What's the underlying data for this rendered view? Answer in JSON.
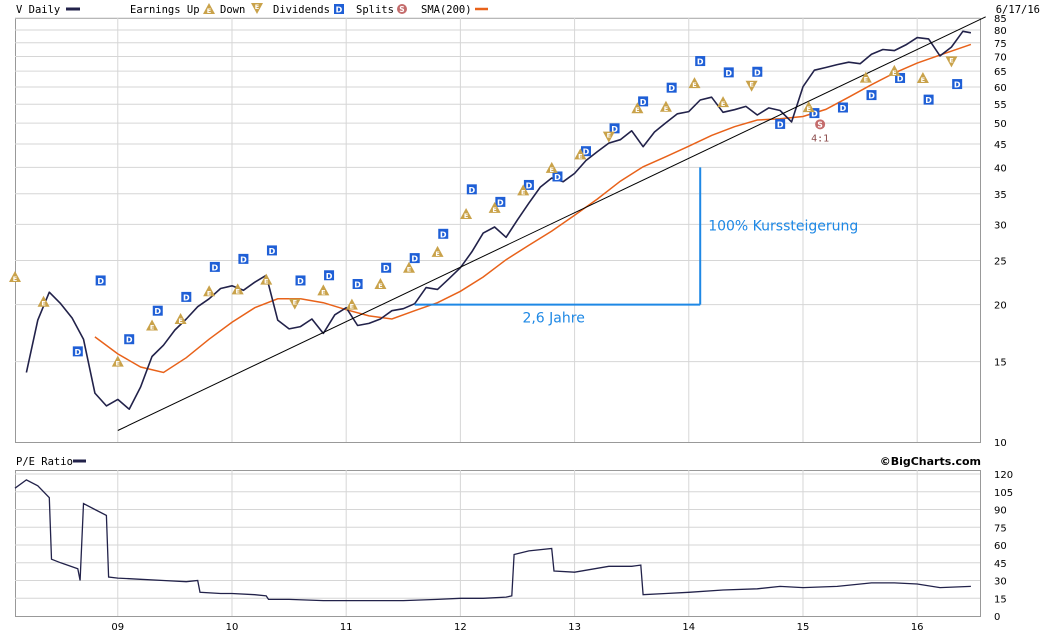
{
  "legend": {
    "symbol": "V Daily",
    "earnings": "Earnings Up",
    "down": "Down",
    "dividends": "Dividends",
    "splits": "Splits",
    "sma": "SMA(200)",
    "date": "6/17/16"
  },
  "pe_panel": {
    "label": "P/E Ratio",
    "credit": "©BigCharts.com"
  },
  "annotations": {
    "years_text": "2,6 Jahre",
    "gain_text": "100% Kurssteigerung",
    "split_text": "4:1"
  },
  "marker_glyphs": {
    "dividend": "D",
    "earnings": "E",
    "split": "S"
  },
  "colors": {
    "price": "#22224a",
    "sma": "#e8621a",
    "annotation": "#1e88e5",
    "dividend_box": "#1f5fd6",
    "earnings_up": "#c9a24a",
    "split": "#c46c6c",
    "grid": "#d6d6d6"
  },
  "chart_data": [
    {
      "type": "line",
      "title": "V Daily",
      "y_scale": "log",
      "ylim": [
        10,
        85
      ],
      "y_ticks": [
        85,
        80,
        75,
        70,
        65,
        60,
        55,
        50,
        45,
        40,
        35,
        30,
        25,
        20,
        15,
        10
      ],
      "x_ticks": [
        "09",
        "10",
        "11",
        "12",
        "13",
        "14",
        "15",
        "16"
      ],
      "grid": true,
      "series": [
        {
          "name": "V Daily",
          "x": [
            2008.2,
            2008.3,
            2008.4,
            2008.5,
            2008.6,
            2008.7,
            2008.8,
            2008.9,
            2009.0,
            2009.1,
            2009.2,
            2009.3,
            2009.4,
            2009.5,
            2009.6,
            2009.7,
            2009.8,
            2009.9,
            2010.0,
            2010.1,
            2010.2,
            2010.3,
            2010.4,
            2010.5,
            2010.6,
            2010.7,
            2010.8,
            2010.9,
            2011.0,
            2011.1,
            2011.2,
            2011.3,
            2011.4,
            2011.5,
            2011.6,
            2011.7,
            2011.8,
            2011.9,
            2012.0,
            2012.1,
            2012.2,
            2012.3,
            2012.4,
            2012.5,
            2012.6,
            2012.7,
            2012.8,
            2012.9,
            2013.0,
            2013.1,
            2013.2,
            2013.3,
            2013.4,
            2013.5,
            2013.6,
            2013.7,
            2013.8,
            2013.9,
            2014.0,
            2014.1,
            2014.2,
            2014.3,
            2014.4,
            2014.5,
            2014.6,
            2014.7,
            2014.8,
            2014.9,
            2015.0,
            2015.1,
            2015.2,
            2015.3,
            2015.4,
            2015.5,
            2015.6,
            2015.7,
            2015.8,
            2015.9,
            2016.0,
            2016.1,
            2016.2,
            2016.3,
            2016.4,
            2016.47
          ],
          "values": [
            14.2,
            18.5,
            21.3,
            20.1,
            18.7,
            16.8,
            12.8,
            12.0,
            12.4,
            11.8,
            13.2,
            15.4,
            16.3,
            17.6,
            18.6,
            19.8,
            20.6,
            21.7,
            22.0,
            21.5,
            22.4,
            23.2,
            18.5,
            17.7,
            17.9,
            18.6,
            17.3,
            19.0,
            19.7,
            18.0,
            18.2,
            18.6,
            19.4,
            19.6,
            20.1,
            21.8,
            21.6,
            22.8,
            24.1,
            26.1,
            28.7,
            29.6,
            28.1,
            30.7,
            33.4,
            36.2,
            37.9,
            37.2,
            38.8,
            41.4,
            43.3,
            45.2,
            46.0,
            48.1,
            44.4,
            47.8,
            50.1,
            52.4,
            53.0,
            56.2,
            57.0,
            52.8,
            53.5,
            54.4,
            52.1,
            54.0,
            53.3,
            50.3,
            60.1,
            65.3,
            66.2,
            67.2,
            68.0,
            67.5,
            70.8,
            72.5,
            72.1,
            74.2,
            77.0,
            76.5,
            70.2,
            73.4,
            79.5,
            78.9
          ]
        },
        {
          "name": "SMA(200)",
          "x": [
            2008.8,
            2009.0,
            2009.2,
            2009.4,
            2009.6,
            2009.8,
            2010.0,
            2010.2,
            2010.4,
            2010.6,
            2010.8,
            2011.0,
            2011.2,
            2011.4,
            2011.6,
            2011.8,
            2012.0,
            2012.2,
            2012.4,
            2012.6,
            2012.8,
            2013.0,
            2013.2,
            2013.4,
            2013.6,
            2013.8,
            2014.0,
            2014.2,
            2014.4,
            2014.6,
            2014.8,
            2015.0,
            2015.2,
            2015.4,
            2015.6,
            2015.8,
            2016.0,
            2016.2,
            2016.47
          ],
          "values": [
            17.0,
            15.6,
            14.6,
            14.2,
            15.3,
            16.8,
            18.3,
            19.7,
            20.6,
            20.6,
            20.2,
            19.5,
            18.9,
            18.6,
            19.4,
            20.2,
            21.4,
            23.0,
            25.1,
            27.0,
            29.0,
            31.4,
            34.1,
            37.3,
            40.1,
            42.2,
            44.5,
            47.0,
            49.1,
            50.8,
            51.1,
            51.7,
            53.6,
            57.0,
            60.7,
            64.4,
            67.7,
            70.5,
            74.4
          ]
        },
        {
          "name": "Trendlinie",
          "x": [
            2009.0,
            2016.6
          ],
          "values": [
            10.6,
            85.5
          ]
        }
      ],
      "dividends": [
        {
          "x": 2008.65,
          "y": 15.8
        },
        {
          "x": 2008.85,
          "y": 22.6
        },
        {
          "x": 2009.1,
          "y": 16.8
        },
        {
          "x": 2009.35,
          "y": 19.4
        },
        {
          "x": 2009.6,
          "y": 20.8
        },
        {
          "x": 2009.85,
          "y": 24.2
        },
        {
          "x": 2010.1,
          "y": 25.2
        },
        {
          "x": 2010.35,
          "y": 26.3
        },
        {
          "x": 2010.6,
          "y": 22.6
        },
        {
          "x": 2010.85,
          "y": 23.2
        },
        {
          "x": 2011.1,
          "y": 22.2
        },
        {
          "x": 2011.35,
          "y": 24.1
        },
        {
          "x": 2011.6,
          "y": 25.3
        },
        {
          "x": 2011.85,
          "y": 28.6
        },
        {
          "x": 2012.1,
          "y": 35.8
        },
        {
          "x": 2012.35,
          "y": 33.6
        },
        {
          "x": 2012.6,
          "y": 36.6
        },
        {
          "x": 2012.85,
          "y": 38.2
        },
        {
          "x": 2013.1,
          "y": 43.4
        },
        {
          "x": 2013.35,
          "y": 48.7
        },
        {
          "x": 2013.6,
          "y": 55.8
        },
        {
          "x": 2013.85,
          "y": 59.8
        },
        {
          "x": 2014.1,
          "y": 68.4
        },
        {
          "x": 2014.35,
          "y": 64.6
        },
        {
          "x": 2014.6,
          "y": 64.8
        },
        {
          "x": 2014.8,
          "y": 49.8
        },
        {
          "x": 2015.1,
          "y": 52.6
        },
        {
          "x": 2015.35,
          "y": 54.1
        },
        {
          "x": 2015.6,
          "y": 57.6
        },
        {
          "x": 2015.85,
          "y": 62.8
        },
        {
          "x": 2016.1,
          "y": 56.3
        },
        {
          "x": 2016.35,
          "y": 60.9
        }
      ],
      "earnings": [
        {
          "x": 2008.1,
          "y": 23.0,
          "dir": "up"
        },
        {
          "x": 2008.35,
          "y": 20.3,
          "dir": "up"
        },
        {
          "x": 2009.0,
          "y": 15.0,
          "dir": "up"
        },
        {
          "x": 2009.3,
          "y": 18.0,
          "dir": "up"
        },
        {
          "x": 2009.55,
          "y": 18.6,
          "dir": "up"
        },
        {
          "x": 2009.8,
          "y": 21.4,
          "dir": "up"
        },
        {
          "x": 2010.05,
          "y": 21.6,
          "dir": "up"
        },
        {
          "x": 2010.3,
          "y": 22.7,
          "dir": "up"
        },
        {
          "x": 2010.55,
          "y": 20.1,
          "dir": "down"
        },
        {
          "x": 2010.8,
          "y": 21.5,
          "dir": "up"
        },
        {
          "x": 2011.05,
          "y": 20.0,
          "dir": "up"
        },
        {
          "x": 2011.3,
          "y": 22.2,
          "dir": "up"
        },
        {
          "x": 2011.55,
          "y": 24.1,
          "dir": "up"
        },
        {
          "x": 2011.8,
          "y": 26.1,
          "dir": "up"
        },
        {
          "x": 2012.05,
          "y": 31.6,
          "dir": "up"
        },
        {
          "x": 2012.3,
          "y": 32.6,
          "dir": "up"
        },
        {
          "x": 2012.55,
          "y": 35.6,
          "dir": "up"
        },
        {
          "x": 2012.8,
          "y": 39.9,
          "dir": "up"
        },
        {
          "x": 2013.05,
          "y": 42.7,
          "dir": "up"
        },
        {
          "x": 2013.3,
          "y": 46.7,
          "dir": "down"
        },
        {
          "x": 2013.55,
          "y": 53.9,
          "dir": "up"
        },
        {
          "x": 2013.8,
          "y": 54.3,
          "dir": "up"
        },
        {
          "x": 2014.05,
          "y": 61.2,
          "dir": "up"
        },
        {
          "x": 2014.3,
          "y": 55.6,
          "dir": "up"
        },
        {
          "x": 2014.55,
          "y": 60.4,
          "dir": "down"
        },
        {
          "x": 2015.05,
          "y": 54.2,
          "dir": "up"
        },
        {
          "x": 2015.55,
          "y": 62.9,
          "dir": "up"
        },
        {
          "x": 2015.8,
          "y": 65.1,
          "dir": "up"
        },
        {
          "x": 2016.05,
          "y": 62.8,
          "dir": "up"
        },
        {
          "x": 2016.3,
          "y": 68.3,
          "dir": "down"
        }
      ],
      "splits": [
        {
          "x": 2015.15,
          "y": 49.7,
          "label": "4:1"
        }
      ],
      "guides": {
        "horizontal": {
          "x_from": 2011.6,
          "x_to": 2014.1,
          "y": 20
        },
        "vertical": {
          "x": 2014.1,
          "y_from": 20,
          "y_to": 40
        }
      }
    },
    {
      "type": "line",
      "title": "P/E Ratio",
      "ylim": [
        0,
        120
      ],
      "y_ticks": [
        120,
        105,
        90,
        75,
        60,
        45,
        30,
        15,
        0
      ],
      "x_ticks": [
        "09",
        "10",
        "11",
        "12",
        "13",
        "14",
        "15",
        "16"
      ],
      "grid": true,
      "series": [
        {
          "name": "P/E Ratio",
          "x": [
            2008.1,
            2008.2,
            2008.3,
            2008.4,
            2008.42,
            2008.5,
            2008.65,
            2008.67,
            2008.7,
            2008.8,
            2008.9,
            2008.92,
            2009.0,
            2009.2,
            2009.4,
            2009.6,
            2009.7,
            2009.72,
            2009.9,
            2010.0,
            2010.2,
            2010.3,
            2010.32,
            2010.5,
            2010.8,
            2011.0,
            2011.2,
            2011.5,
            2011.8,
            2012.0,
            2012.2,
            2012.4,
            2012.45,
            2012.47,
            2012.6,
            2012.8,
            2012.82,
            2013.0,
            2013.3,
            2013.5,
            2013.58,
            2013.6,
            2013.8,
            2014.0,
            2014.3,
            2014.6,
            2014.8,
            2015.0,
            2015.3,
            2015.6,
            2015.8,
            2016.0,
            2016.2,
            2016.47
          ],
          "values": [
            108,
            115,
            110,
            100,
            48,
            45,
            40,
            30,
            95,
            90,
            85,
            33,
            32,
            31,
            30,
            29,
            30,
            20,
            19,
            19,
            18,
            17,
            14,
            14,
            13,
            13,
            13,
            13,
            14,
            15,
            15,
            16,
            17,
            52,
            55,
            57,
            38,
            37,
            42,
            42,
            43,
            18,
            19,
            20,
            22,
            23,
            25,
            24,
            25,
            28,
            28,
            27,
            24,
            25
          ]
        }
      ]
    }
  ]
}
